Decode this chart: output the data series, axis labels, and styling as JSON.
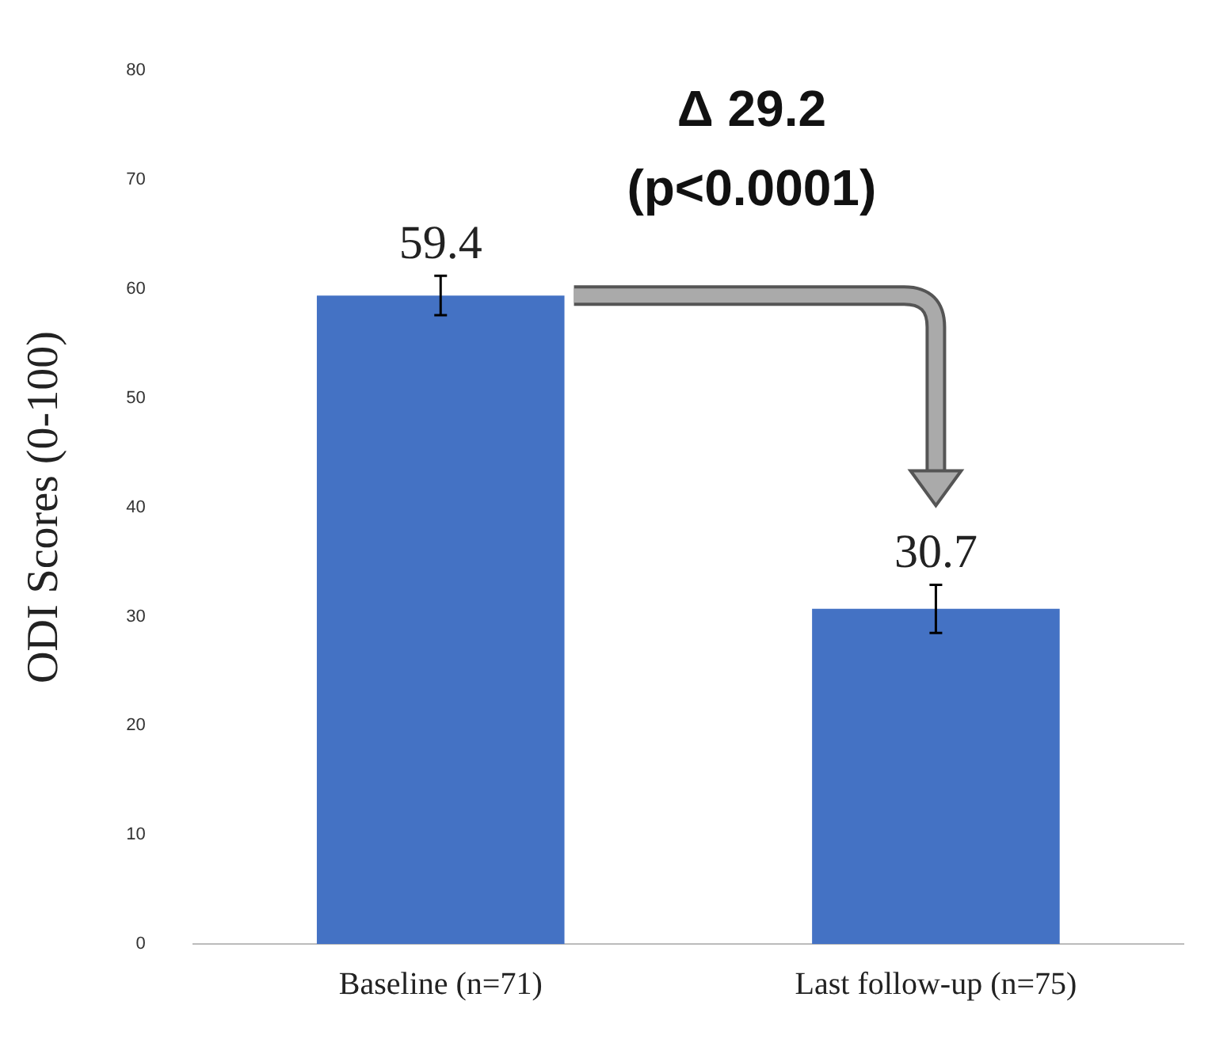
{
  "chart_data": {
    "type": "bar",
    "ylabel": "ODI Scores (0-100)",
    "categories": [
      "Baseline (n=71)",
      "Last follow-up (n=75)"
    ],
    "values": [
      59.4,
      30.7
    ],
    "color": "#4472c4",
    "errors": [
      1.8,
      2.2
    ],
    "data_labels": true,
    "ylim": [
      0,
      80
    ],
    "yticks": [
      0,
      10,
      20,
      30,
      40,
      50,
      60,
      70,
      80
    ],
    "grid": false,
    "legend": false,
    "annotations": [
      "Δ 29.2",
      "(p<0.0001)"
    ]
  }
}
